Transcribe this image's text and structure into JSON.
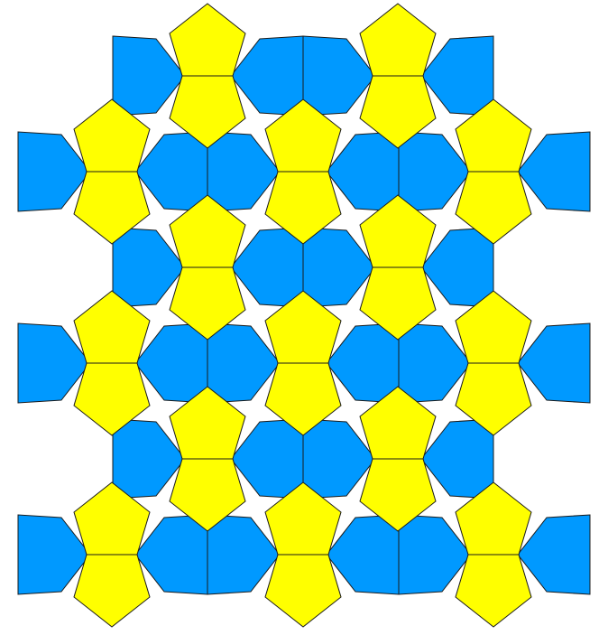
{
  "colors": {
    "background": "#FFFFFF",
    "pentagon_blue": "#0099FF",
    "pentagon_yellow": "#FFFF00",
    "outline": "#1A1A1A"
  },
  "pattern": {
    "description_label": "",
    "tile_shape": "pentagon",
    "motifs": [
      {
        "type": "yellow-bowtie",
        "fill": "pentagon_yellow"
      },
      {
        "type": "blue-bowtie",
        "fill": "pentagon_blue"
      }
    ]
  }
}
